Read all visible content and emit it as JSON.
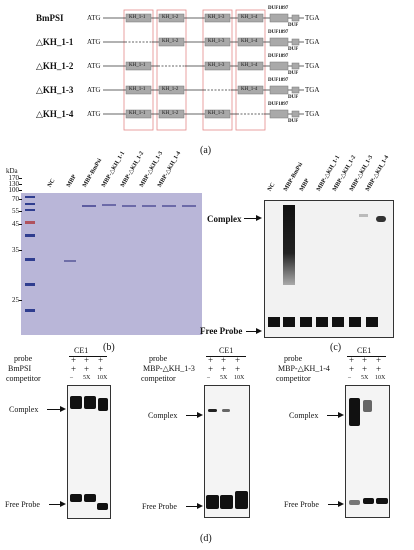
{
  "panel_a": {
    "letter": "(a)",
    "atg": "ATG",
    "tga": "TGA",
    "duf_top": "DUF1897",
    "duf_bottom": "DUF",
    "constructs": [
      {
        "name": "BmPSI",
        "boxes": [
          "KH_1-1",
          "KH_1-2",
          "KH_1-3",
          "KH_1-4"
        ],
        "deleted": null
      },
      {
        "name": "△KH_1-1",
        "boxes": [
          "KH_1-2",
          "KH_1-3",
          "KH_1-4"
        ],
        "deleted": 0
      },
      {
        "name": "△KH_1-2",
        "boxes": [
          "KH_1-1",
          "KH_1-3",
          "KH_1-4"
        ],
        "deleted": 1
      },
      {
        "name": "△KH_1-3",
        "boxes": [
          "KH_1-1",
          "KH_1-2",
          "KH_1-4"
        ],
        "deleted": 2
      },
      {
        "name": "△KH_1-4",
        "boxes": [
          "KH_1-1",
          "KH_1-2",
          "KH_1-3"
        ],
        "deleted": 3
      }
    ]
  },
  "panel_b": {
    "letter": "(b)",
    "kda_label": "kDa",
    "markers": [
      "170",
      "130",
      "100",
      "70",
      "55",
      "45",
      "35",
      "25"
    ],
    "lanes": [
      "NC",
      "MBP",
      "MBP-BmPsi",
      "MBP-△KH_1-1",
      "MBP-△KH_1-2",
      "MBP-△KH_1-3",
      "MBP-△KH_1-4"
    ]
  },
  "panel_c": {
    "letter": "(c)",
    "lanes": [
      "NC",
      "MBP-BmPsi",
      "MBP",
      "MBP-△KH_1-1",
      "MBP-△KH_1-2",
      "MBP-△KH_1-3",
      "MBP-△KH_1-4"
    ],
    "complex": "Complex",
    "free_probe": "Free Probe"
  },
  "panel_d": {
    "letter": "(d)",
    "row_probe": "probe",
    "row_competitor": "competitor",
    "probe_name": "CE1",
    "lane_marks": [
      "–",
      "5X",
      "10X"
    ],
    "plus": "+",
    "complex": "Complex",
    "free_probe": "Free Probe",
    "blots": [
      {
        "protein": "BmPSI"
      },
      {
        "protein": "MBP-△KH_1-3"
      },
      {
        "protein": "MBP-△KH_1-4"
      }
    ]
  }
}
